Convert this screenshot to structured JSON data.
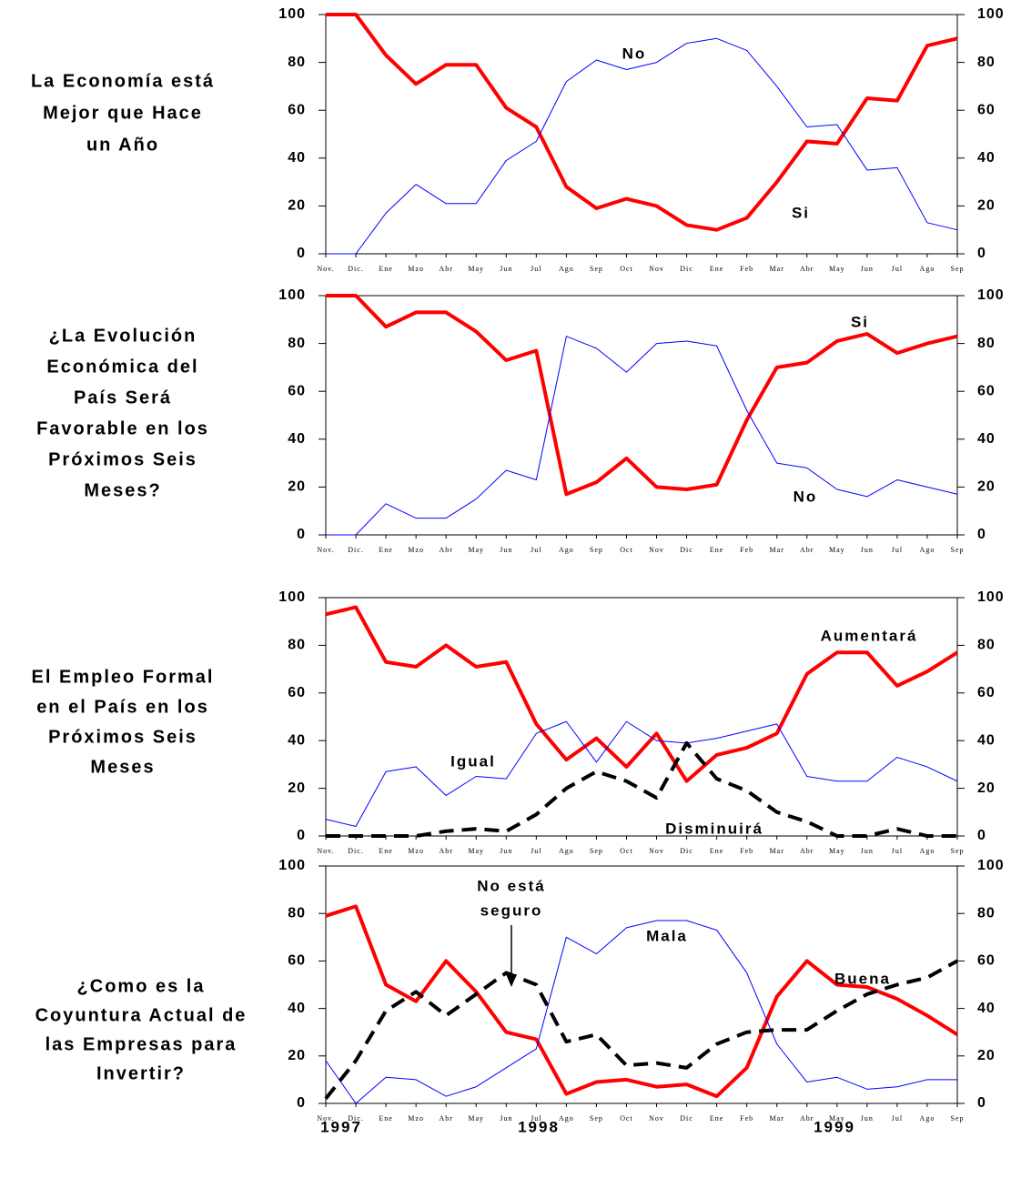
{
  "chart_data": [
    {
      "type": "line",
      "title": [
        "La Economía está",
        "Mejor que Hace",
        "un Año"
      ],
      "categories": [
        "Nov.",
        "Dic.",
        "Ene",
        "Mzo",
        "Abr",
        "May",
        "Jun",
        "Jul",
        "Ago",
        "Sep",
        "Oct",
        "Nov",
        "Dic",
        "Ene",
        "Feb",
        "Mar",
        "Abr",
        "May",
        "Jun",
        "Jul",
        "Ago",
        "Sep"
      ],
      "series": [
        {
          "name": "Si",
          "color": "#ff0000",
          "linewidth": 4,
          "values": [
            100,
            100,
            83,
            71,
            79,
            79,
            61,
            53,
            28,
            19,
            23,
            20,
            12,
            10,
            15,
            30,
            47,
            46,
            65,
            64,
            87,
            90
          ]
        },
        {
          "name": "No",
          "color": "#0000ff",
          "linewidth": 1,
          "values": [
            0,
            0,
            17,
            29,
            21,
            21,
            39,
            47,
            72,
            81,
            77,
            80,
            88,
            90,
            85,
            70,
            53,
            54,
            35,
            36,
            13,
            10
          ]
        }
      ],
      "annotations": [
        "No",
        "Si"
      ],
      "ylim": [
        0,
        100
      ],
      "yticks": [
        0,
        20,
        40,
        60,
        80,
        100
      ],
      "y2lim": [
        0,
        100
      ],
      "y2ticks": [
        0,
        20,
        40,
        60,
        80,
        100
      ]
    },
    {
      "type": "line",
      "title": [
        "¿La Evolución",
        "Económica del",
        "País Será",
        "Favorable en los",
        "Próximos Seis",
        "Meses?"
      ],
      "categories": [
        "Nov.",
        "Dic.",
        "Ene",
        "Mzo",
        "Abr",
        "May",
        "Jun",
        "Jul",
        "Ago",
        "Sep",
        "Oct",
        "Nov",
        "Dic",
        "Ene",
        "Feb",
        "Mar",
        "Abr",
        "May",
        "Jun",
        "Jul",
        "Ago",
        "Sep"
      ],
      "series": [
        {
          "name": "Si",
          "color": "#ff0000",
          "linewidth": 4,
          "values": [
            100,
            100,
            87,
            93,
            93,
            85,
            73,
            77,
            17,
            22,
            32,
            20,
            19,
            21,
            48,
            70,
            72,
            81,
            84,
            76,
            80,
            83
          ]
        },
        {
          "name": "No",
          "color": "#0000ff",
          "linewidth": 1,
          "values": [
            0,
            0,
            13,
            7,
            7,
            15,
            27,
            23,
            83,
            78,
            68,
            80,
            81,
            79,
            52,
            30,
            28,
            19,
            16,
            23,
            20,
            17
          ]
        }
      ],
      "annotations": [
        "Si",
        "No"
      ],
      "ylim": [
        0,
        100
      ],
      "yticks": [
        0,
        20,
        40,
        60,
        80,
        100
      ],
      "y2lim": [
        0,
        100
      ],
      "y2ticks": [
        0,
        20,
        40,
        60,
        80,
        100
      ]
    },
    {
      "type": "line",
      "title": [
        "El Empleo Formal",
        "en el País en los",
        "Próximos Seis",
        "Meses"
      ],
      "categories": [
        "Nov.",
        "Dic.",
        "Ene",
        "Mzo",
        "Abr",
        "May",
        "Jun",
        "Jul",
        "Ago",
        "Sep",
        "Oct",
        "Nov",
        "Dic",
        "Ene",
        "Feb",
        "Mar",
        "Abr",
        "May",
        "Jun",
        "Jul",
        "Ago",
        "Sep"
      ],
      "series": [
        {
          "name": "Aumentará",
          "color": "#ff0000",
          "linewidth": 4,
          "values": [
            93,
            96,
            73,
            71,
            80,
            71,
            73,
            47,
            32,
            41,
            29,
            43,
            23,
            34,
            37,
            43,
            68,
            77,
            77,
            63,
            69,
            77
          ]
        },
        {
          "name": "Igual",
          "color": "#0000ff",
          "linewidth": 1,
          "values": [
            7,
            4,
            27,
            29,
            17,
            25,
            24,
            43,
            48,
            31,
            48,
            40,
            39,
            41,
            44,
            47,
            25,
            23,
            23,
            33,
            29,
            23
          ]
        },
        {
          "name": "Disminuirá",
          "color": "#000000",
          "linewidth": 4,
          "dashed": true,
          "values": [
            0,
            0,
            0,
            0,
            2,
            3,
            2,
            9,
            20,
            27,
            23,
            16,
            39,
            24,
            19,
            10,
            6,
            0,
            0,
            3,
            0,
            0
          ]
        }
      ],
      "annotations": [
        "Aumentará",
        "Igual",
        "Disminuirá"
      ],
      "ylim": [
        0,
        100
      ],
      "yticks": [
        0,
        20,
        40,
        60,
        80,
        100
      ],
      "y2lim": [
        0,
        100
      ],
      "y2ticks": [
        0,
        20,
        40,
        60,
        80,
        100
      ]
    },
    {
      "type": "line",
      "title": [
        "¿Como es la",
        "Coyuntura Actual de",
        "las Empresas para",
        "Invertir?"
      ],
      "categories": [
        "Nov.",
        "Dic.",
        "Ene",
        "Mzo",
        "Abr",
        "May",
        "Jun",
        "Jul",
        "Ago",
        "Sep",
        "Oct",
        "Nov",
        "Dic",
        "Ene",
        "Feb",
        "Mar",
        "Abr",
        "May",
        "Jun",
        "Jul",
        "Ago",
        "Sep"
      ],
      "years": [
        "1997",
        "1998",
        "1999"
      ],
      "series": [
        {
          "name": "Buena",
          "color": "#ff0000",
          "linewidth": 4,
          "values": [
            79,
            83,
            50,
            43,
            60,
            47,
            30,
            27,
            4,
            9,
            10,
            7,
            8,
            3,
            15,
            45,
            60,
            50,
            49,
            44,
            37,
            29
          ]
        },
        {
          "name": "Mala",
          "color": "#0000ff",
          "linewidth": 1,
          "values": [
            18,
            0,
            11,
            10,
            3,
            7,
            15,
            23,
            70,
            63,
            74,
            77,
            77,
            73,
            55,
            25,
            9,
            11,
            6,
            7,
            10,
            10
          ]
        },
        {
          "name": "No está seguro",
          "color": "#000000",
          "linewidth": 4,
          "dashed": true,
          "values": [
            2,
            18,
            39,
            47,
            37,
            46,
            55,
            50,
            26,
            29,
            16,
            17,
            15,
            25,
            30,
            31,
            31,
            39,
            46,
            50,
            53,
            60
          ]
        }
      ],
      "annotations": [
        [
          "No está",
          "seguro"
        ],
        "Mala",
        "Buena"
      ],
      "ylim": [
        0,
        100
      ],
      "yticks": [
        0,
        20,
        40,
        60,
        80,
        100
      ],
      "y2lim": [
        0,
        100
      ],
      "y2ticks": [
        0,
        20,
        40,
        60,
        80,
        100
      ]
    }
  ]
}
